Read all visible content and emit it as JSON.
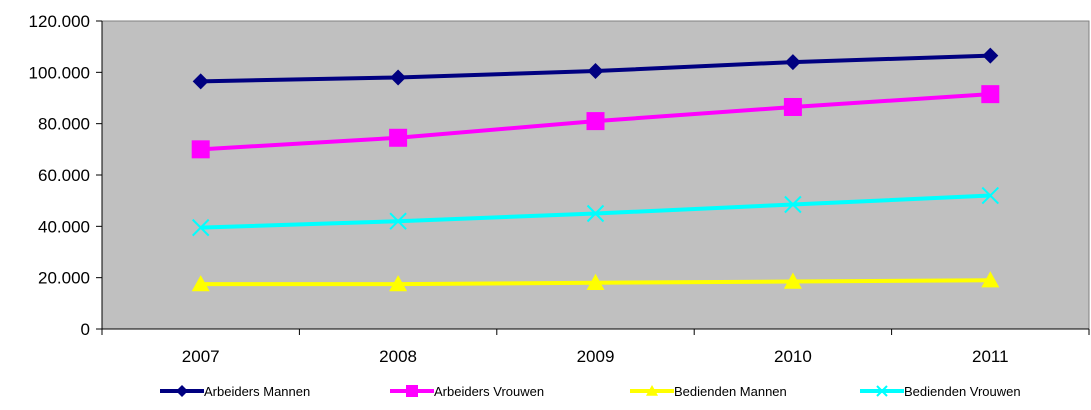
{
  "chart_data": {
    "type": "line",
    "title": "",
    "xlabel": "",
    "ylabel": "",
    "categories": [
      "2007",
      "2008",
      "2009",
      "2010",
      "2011"
    ],
    "ylim": [
      0,
      120000
    ],
    "yticks": [
      0,
      20000,
      40000,
      60000,
      80000,
      100000,
      120000
    ],
    "ytick_labels": [
      "0",
      "20.000",
      "40.000",
      "60.000",
      "80.000",
      "100.000",
      "120.000"
    ],
    "grid": false,
    "plot_background": "#C0C0C0",
    "legend_position": "bottom",
    "series": [
      {
        "name": "Arbeiders Mannen",
        "color": "#000080",
        "marker": "diamond",
        "values": [
          96500,
          98000,
          100500,
          104000,
          106500
        ]
      },
      {
        "name": "Arbeiders Vrouwen",
        "color": "#FF00FF",
        "marker": "square",
        "values": [
          70000,
          74500,
          81000,
          86500,
          91500
        ]
      },
      {
        "name": "Bedienden Mannen",
        "color": "#FFFF00",
        "marker": "triangle",
        "values": [
          17500,
          17500,
          18000,
          18500,
          19000
        ]
      },
      {
        "name": "Bedienden Vrouwen",
        "color": "#00FFFF",
        "marker": "x",
        "values": [
          39500,
          42000,
          45000,
          48500,
          52000
        ]
      }
    ]
  }
}
